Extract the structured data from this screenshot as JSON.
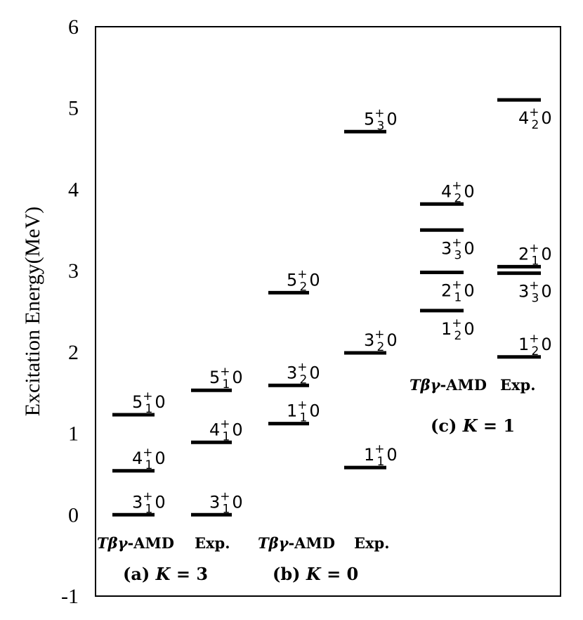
{
  "chart_data": {
    "type": "level-scheme",
    "ylabel": "Excitation Energy(MeV)",
    "ylim": [
      -1,
      6
    ],
    "yticks": [
      "-1",
      "0",
      "1",
      "2",
      "3",
      "4",
      "5",
      "6"
    ],
    "grid": false,
    "columns": [
      {
        "id": "a-th",
        "label_model": "Tβγ",
        "label_suffix": "-AMD",
        "levels": [
          {
            "E": 0.0,
            "J": "3",
            "n": "1",
            "T": "0",
            "label_pos": "above"
          },
          {
            "E": 0.54,
            "J": "4",
            "n": "1",
            "T": "0",
            "label_pos": "above"
          },
          {
            "E": 1.23,
            "J": "5",
            "n": "1",
            "T": "0",
            "label_pos": "above"
          }
        ]
      },
      {
        "id": "a-exp",
        "label_model": "",
        "label_suffix": "Exp.",
        "levels": [
          {
            "E": 0.0,
            "J": "3",
            "n": "1",
            "T": "0",
            "label_pos": "above"
          },
          {
            "E": 0.89,
            "J": "4",
            "n": "1",
            "T": "0",
            "label_pos": "above"
          },
          {
            "E": 1.53,
            "J": "5",
            "n": "1",
            "T": "0",
            "label_pos": "above"
          }
        ]
      },
      {
        "id": "b-th",
        "label_model": "Tβγ",
        "label_suffix": "-AMD",
        "levels": [
          {
            "E": 1.12,
            "J": "1",
            "n": "1",
            "T": "0",
            "label_pos": "above"
          },
          {
            "E": 1.59,
            "J": "3",
            "n": "2",
            "T": "0",
            "label_pos": "above"
          },
          {
            "E": 2.73,
            "J": "5",
            "n": "2",
            "T": "0",
            "label_pos": "above"
          }
        ]
      },
      {
        "id": "b-exp",
        "label_model": "",
        "label_suffix": "Exp.",
        "levels": [
          {
            "E": 0.58,
            "J": "1",
            "n": "1",
            "T": "0",
            "label_pos": "above"
          },
          {
            "E": 1.99,
            "J": "3",
            "n": "2",
            "T": "0",
            "label_pos": "above"
          },
          {
            "E": 4.71,
            "J": "5",
            "n": "3",
            "T": "0",
            "label_pos": "above"
          }
        ]
      },
      {
        "id": "c-th",
        "label_model": "Tβγ",
        "label_suffix": "-AMD",
        "levels": [
          {
            "E": 2.51,
            "J": "1",
            "n": "2",
            "T": "0",
            "label_pos": "below"
          },
          {
            "E": 2.98,
            "J": "2",
            "n": "1",
            "T": "0",
            "label_pos": "below"
          },
          {
            "E": 3.5,
            "J": "3",
            "n": "3",
            "T": "0",
            "label_pos": "below"
          },
          {
            "E": 3.82,
            "J": "4",
            "n": "2",
            "T": "0",
            "label_pos": "above"
          }
        ]
      },
      {
        "id": "c-exp",
        "label_model": "",
        "label_suffix": "Exp.",
        "levels": [
          {
            "E": 1.94,
            "J": "1",
            "n": "2",
            "T": "0",
            "label_pos": "above"
          },
          {
            "E": 2.97,
            "J": "3",
            "n": "3",
            "T": "0",
            "label_pos": "below"
          },
          {
            "E": 3.05,
            "J": "2",
            "n": "1",
            "T": "0",
            "label_pos": "above"
          },
          {
            "E": 5.1,
            "J": "4",
            "n": "2",
            "T": "0",
            "label_pos": "below"
          }
        ]
      }
    ],
    "groups": [
      {
        "prefix": "(a) ",
        "var": "K",
        "eq": " = ",
        "value": "3"
      },
      {
        "prefix": "(b) ",
        "var": "K",
        "eq": " = ",
        "value": "0"
      },
      {
        "prefix": "(c) ",
        "var": "K",
        "eq": " = ",
        "value": "1"
      }
    ]
  }
}
